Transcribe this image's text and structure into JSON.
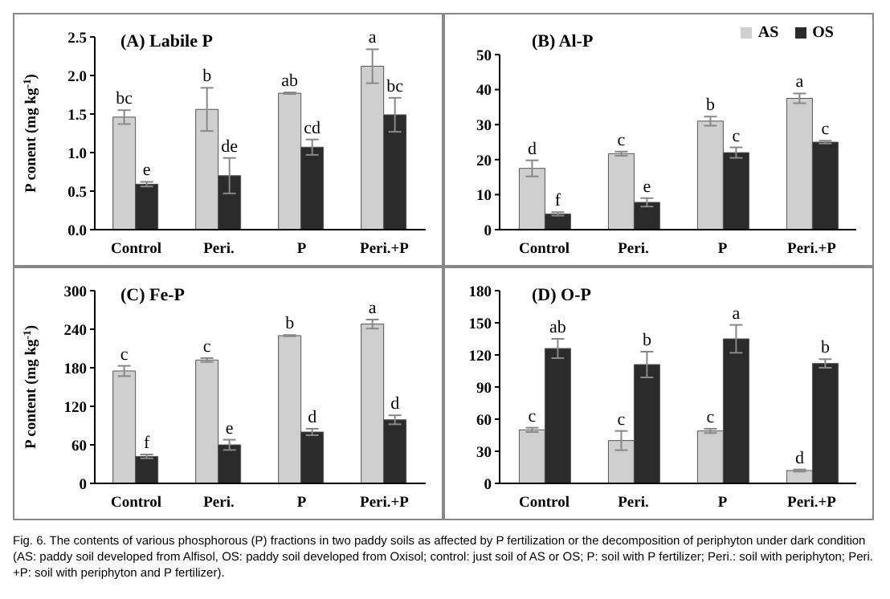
{
  "chart_data": [
    {
      "type": "bar",
      "title": "(A) Labile P",
      "ylabel": "P conent (mg kg$^{-1}$)",
      "categories": [
        "Control",
        "Peri.",
        "P",
        "Peri.+P"
      ],
      "ylim": [
        0,
        2.5
      ],
      "yticks": [
        {
          "value": 0,
          "label": "0.0"
        },
        {
          "value": 0.5,
          "label": "0.5"
        },
        {
          "value": 1,
          "label": "1.0"
        },
        {
          "value": 1.5,
          "label": "1.5"
        },
        {
          "value": 2,
          "label": "2.0"
        },
        {
          "value": 2.5,
          "label": "2.5"
        }
      ],
      "legend": false,
      "series": [
        {
          "color": "#cfcfcf",
          "values": [
            1.46,
            1.56,
            1.77,
            2.12
          ],
          "errors": [
            0.09,
            0.28,
            0.01,
            0.22
          ]
        },
        {
          "color": "#2b2b2b",
          "values": [
            0.59,
            0.7,
            1.07,
            1.49
          ],
          "errors": [
            0.03,
            0.23,
            0.1,
            0.22
          ]
        }
      ],
      "annotations": [
        {
          "text": "bc",
          "x": "Control",
          "y": 1.46
        },
        {
          "text": "b",
          "x": "Peri.",
          "y": 1.56
        },
        {
          "text": "ab",
          "x": "P",
          "y": 1.77
        },
        {
          "text": "a",
          "x": "Peri.+P",
          "y": 2.12
        },
        {
          "text": "e",
          "x": "Control",
          "y": 0.59
        },
        {
          "text": "de",
          "x": "Peri.",
          "y": 0.7
        },
        {
          "text": "cd",
          "x": "P",
          "y": 1.07
        },
        {
          "text": "bc",
          "x": "Peri.+P",
          "y": 1.49
        }
      ]
    },
    {
      "type": "bar",
      "title": "(B) Al-P",
      "categories": [
        "Control",
        "Peri.",
        "P",
        "Peri.+P"
      ],
      "ylim": [
        0,
        50
      ],
      "yticks": [
        0,
        10,
        20,
        30,
        40,
        50
      ],
      "legend": "top right",
      "series": [
        {
          "name": "AS",
          "color": "#cfcfcf",
          "values": [
            17.5,
            21.7,
            31,
            37.5
          ],
          "errors": [
            2.3,
            0.6,
            1.3,
            1.4
          ]
        },
        {
          "name": "OS",
          "color": "#2b2b2b",
          "values": [
            4.5,
            7.8,
            22,
            25
          ],
          "errors": [
            0.5,
            1.2,
            1.5,
            0.4
          ]
        }
      ],
      "annotations": [
        {
          "text": "d",
          "x": "Control",
          "y": 17.5
        },
        {
          "text": "c",
          "x": "Peri.",
          "y": 21.7
        },
        {
          "text": "b",
          "x": "P",
          "y": 31
        },
        {
          "text": "a",
          "x": "Peri.+P",
          "y": 37.5
        },
        {
          "text": "f",
          "x": "Control",
          "y": 4.5
        },
        {
          "text": "e",
          "x": "Peri.",
          "y": 7.8
        },
        {
          "text": "c",
          "x": "P",
          "y": 22
        },
        {
          "text": "c",
          "x": "Peri.+P",
          "y": 25
        }
      ]
    },
    {
      "type": "bar",
      "title": "(C) Fe-P",
      "ylabel": "P content (mg kg$^{-1}$)",
      "categories": [
        "Control",
        "Peri.",
        "P",
        "Peri.+P"
      ],
      "ylim": [
        0,
        300
      ],
      "yticks": [
        0,
        60,
        120,
        180,
        240,
        300
      ],
      "legend": false,
      "series": [
        {
          "color": "#cfcfcf",
          "values": [
            175,
            192,
            230,
            248
          ],
          "errors": [
            8,
            3,
            1,
            7
          ]
        },
        {
          "color": "#2b2b2b",
          "values": [
            42,
            60,
            80,
            99
          ],
          "errors": [
            3,
            8,
            5,
            7
          ]
        }
      ],
      "annotations": [
        {
          "text": "c",
          "x": "Control",
          "y": 175
        },
        {
          "text": "c",
          "x": "Peri.",
          "y": 192
        },
        {
          "text": "b",
          "x": "P",
          "y": 230
        },
        {
          "text": "a",
          "x": "Peri.+P",
          "y": 248
        },
        {
          "text": "f",
          "x": "Control",
          "y": 42
        },
        {
          "text": "e",
          "x": "Peri.",
          "y": 60
        },
        {
          "text": "d",
          "x": "P",
          "y": 80
        },
        {
          "text": "d",
          "x": "Peri.+P",
          "y": 99
        }
      ]
    },
    {
      "type": "bar",
      "title": "(D) O-P",
      "categories": [
        "Control",
        "Peri.",
        "P",
        "Peri.+P"
      ],
      "ylim": [
        0,
        180
      ],
      "yticks": [
        0,
        30,
        60,
        90,
        120,
        150,
        180
      ],
      "legend": false,
      "series": [
        {
          "color": "#cfcfcf",
          "values": [
            50,
            40,
            49,
            12
          ],
          "errors": [
            2,
            9,
            2,
            1
          ]
        },
        {
          "color": "#2b2b2b",
          "values": [
            126,
            111,
            135,
            112
          ],
          "errors": [
            9,
            12,
            13,
            4
          ]
        }
      ],
      "annotations": [
        {
          "text": "c",
          "x": "Control",
          "y": 50
        },
        {
          "text": "c",
          "x": "Peri.",
          "y": 40
        },
        {
          "text": "c",
          "x": "P",
          "y": 49
        },
        {
          "text": "d",
          "x": "Peri.+P",
          "y": 12
        },
        {
          "text": "ab",
          "x": "Control",
          "y": 126
        },
        {
          "text": "b",
          "x": "Peri.",
          "y": 111
        },
        {
          "text": "a",
          "x": "P",
          "y": 135
        },
        {
          "text": "b",
          "x": "Peri.+P",
          "y": 112
        },
        "Fig. 6. The contents of various phosphorous (P) fractions in two paddy soils as affected by P fertilization or the decomposition of periphyton under dark condition (AS: paddy soil developed from Alfisol, OS: paddy soil developed from Oxisol; control: just soil of AS or OS; P: soil with P fertilizer; Peri.: soil with periphyton; Peri. +P: soil with periphyton and P fertilizer)."
      ]
    }
  ]
}
